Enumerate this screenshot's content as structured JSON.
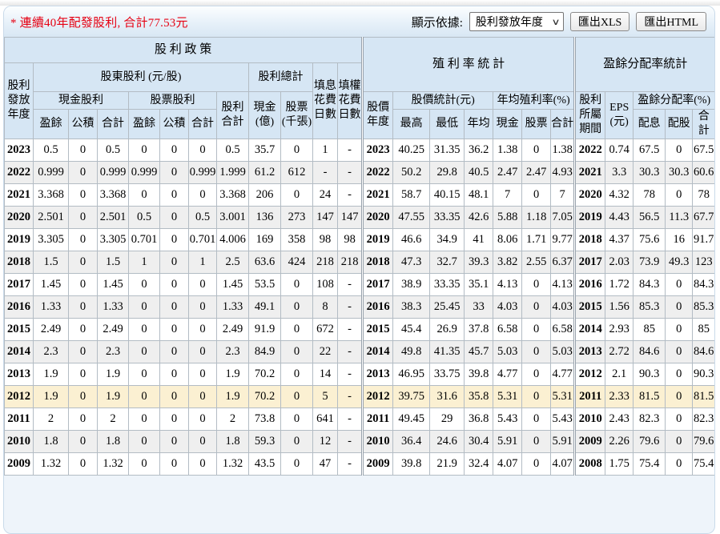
{
  "colors": {
    "note_red": "#e60012",
    "header_bg": "#d6e6f4",
    "row_alt": "#efefef",
    "row_highlight": "#fbf0d2"
  },
  "page": {
    "note": "* 連續40年配發股利, 合計77.53元",
    "toolbar": {
      "display_label": "顯示依據:",
      "display_value": "股利發放年度",
      "export_xls": "匯出XLS",
      "export_html": "匯出HTML"
    }
  },
  "table": {
    "sections": {
      "policy": "股  利  政  策",
      "yield": "殖 利 率 統 計",
      "payout": "盈餘分配率統計"
    },
    "headers": {
      "year": "股利\n發放\n年度",
      "shareholder": "股東股利 (元/股)",
      "cash_div": "現金股利",
      "stock_div": "股票股利",
      "earn": "盈餘",
      "surplus": "公積",
      "total": "合計",
      "div_sum": "股利\n合計",
      "grand_total": "股利總計",
      "cash_b": "現金\n(億)",
      "stock_k": "股票\n(千張)",
      "fill_interest": "填息\n花費\n日數",
      "fill_rights": "填權\n花費\n日數",
      "price_year": "股價\n年度",
      "price_stats": "股價統計(元)",
      "high": "最高",
      "low": "最低",
      "avg": "年均",
      "yield_pct": "年均殖利率(%)",
      "cash": "現金",
      "stock": "股票",
      "period": "股利\n所屬\n期間",
      "eps": "EPS\n(元)",
      "payout_pct": "盈餘分配率(%)",
      "p_cash": "配息",
      "p_stock": "配股"
    },
    "rows": [
      {
        "highlight": false,
        "cells": [
          "2023",
          "0.5",
          "0",
          "0.5",
          "0",
          "0",
          "0",
          "0.5",
          "35.7",
          "0",
          "1",
          "-",
          "2023",
          "40.25",
          "31.35",
          "36.2",
          "1.38",
          "0",
          "1.38",
          "2022",
          "0.74",
          "67.5",
          "0",
          "67.5"
        ]
      },
      {
        "highlight": false,
        "cells": [
          "2022",
          "0.999",
          "0",
          "0.999",
          "0.999",
          "0",
          "0.999",
          "1.999",
          "61.2",
          "612",
          "-",
          "-",
          "2022",
          "50.2",
          "29.8",
          "40.5",
          "2.47",
          "2.47",
          "4.93",
          "2021",
          "3.3",
          "30.3",
          "30.3",
          "60.6"
        ]
      },
      {
        "highlight": false,
        "cells": [
          "2021",
          "3.368",
          "0",
          "3.368",
          "0",
          "0",
          "0",
          "3.368",
          "206",
          "0",
          "24",
          "-",
          "2021",
          "58.7",
          "40.15",
          "48.1",
          "7",
          "0",
          "7",
          "2020",
          "4.32",
          "78",
          "0",
          "78"
        ]
      },
      {
        "highlight": false,
        "cells": [
          "2020",
          "2.501",
          "0",
          "2.501",
          "0.5",
          "0",
          "0.5",
          "3.001",
          "136",
          "273",
          "147",
          "147",
          "2020",
          "47.55",
          "33.35",
          "42.6",
          "5.88",
          "1.18",
          "7.05",
          "2019",
          "4.43",
          "56.5",
          "11.3",
          "67.7"
        ]
      },
      {
        "highlight": false,
        "cells": [
          "2019",
          "3.305",
          "0",
          "3.305",
          "0.701",
          "0",
          "0.701",
          "4.006",
          "169",
          "358",
          "98",
          "98",
          "2019",
          "46.6",
          "34.9",
          "41",
          "8.06",
          "1.71",
          "9.77",
          "2018",
          "4.37",
          "75.6",
          "16",
          "91.7"
        ]
      },
      {
        "highlight": false,
        "cells": [
          "2018",
          "1.5",
          "0",
          "1.5",
          "1",
          "0",
          "1",
          "2.5",
          "63.6",
          "424",
          "218",
          "218",
          "2018",
          "47.3",
          "32.7",
          "39.3",
          "3.82",
          "2.55",
          "6.37",
          "2017",
          "2.03",
          "73.9",
          "49.3",
          "123"
        ]
      },
      {
        "highlight": false,
        "cells": [
          "2017",
          "1.45",
          "0",
          "1.45",
          "0",
          "0",
          "0",
          "1.45",
          "53.5",
          "0",
          "108",
          "-",
          "2017",
          "38.9",
          "33.35",
          "35.1",
          "4.13",
          "0",
          "4.13",
          "2016",
          "1.72",
          "84.3",
          "0",
          "84.3"
        ]
      },
      {
        "highlight": false,
        "cells": [
          "2016",
          "1.33",
          "0",
          "1.33",
          "0",
          "0",
          "0",
          "1.33",
          "49.1",
          "0",
          "8",
          "-",
          "2016",
          "38.3",
          "25.45",
          "33",
          "4.03",
          "0",
          "4.03",
          "2015",
          "1.56",
          "85.3",
          "0",
          "85.3"
        ]
      },
      {
        "highlight": false,
        "cells": [
          "2015",
          "2.49",
          "0",
          "2.49",
          "0",
          "0",
          "0",
          "2.49",
          "91.9",
          "0",
          "672",
          "-",
          "2015",
          "45.4",
          "26.9",
          "37.8",
          "6.58",
          "0",
          "6.58",
          "2014",
          "2.93",
          "85",
          "0",
          "85"
        ]
      },
      {
        "highlight": false,
        "cells": [
          "2014",
          "2.3",
          "0",
          "2.3",
          "0",
          "0",
          "0",
          "2.3",
          "84.9",
          "0",
          "22",
          "-",
          "2014",
          "49.8",
          "41.35",
          "45.7",
          "5.03",
          "0",
          "5.03",
          "2013",
          "2.72",
          "84.6",
          "0",
          "84.6"
        ]
      },
      {
        "highlight": false,
        "cells": [
          "2013",
          "1.9",
          "0",
          "1.9",
          "0",
          "0",
          "0",
          "1.9",
          "70.2",
          "0",
          "14",
          "-",
          "2013",
          "46.95",
          "33.75",
          "39.8",
          "4.77",
          "0",
          "4.77",
          "2012",
          "2.1",
          "90.3",
          "0",
          "90.3"
        ]
      },
      {
        "highlight": true,
        "cells": [
          "2012",
          "1.9",
          "0",
          "1.9",
          "0",
          "0",
          "0",
          "1.9",
          "70.2",
          "0",
          "5",
          "-",
          "2012",
          "39.75",
          "31.6",
          "35.8",
          "5.31",
          "0",
          "5.31",
          "2011",
          "2.33",
          "81.5",
          "0",
          "81.5"
        ]
      },
      {
        "highlight": false,
        "cells": [
          "2011",
          "2",
          "0",
          "2",
          "0",
          "0",
          "0",
          "2",
          "73.8",
          "0",
          "641",
          "-",
          "2011",
          "49.45",
          "29",
          "36.8",
          "5.43",
          "0",
          "5.43",
          "2010",
          "2.43",
          "82.3",
          "0",
          "82.3"
        ]
      },
      {
        "highlight": false,
        "cells": [
          "2010",
          "1.8",
          "0",
          "1.8",
          "0",
          "0",
          "0",
          "1.8",
          "59.3",
          "0",
          "12",
          "-",
          "2010",
          "36.4",
          "24.6",
          "30.4",
          "5.91",
          "0",
          "5.91",
          "2009",
          "2.26",
          "79.6",
          "0",
          "79.6"
        ]
      },
      {
        "highlight": false,
        "cells": [
          "2009",
          "1.32",
          "0",
          "1.32",
          "0",
          "0",
          "0",
          "1.32",
          "43.5",
          "0",
          "47",
          "-",
          "2009",
          "39.8",
          "21.9",
          "32.4",
          "4.07",
          "0",
          "4.07",
          "2008",
          "1.75",
          "75.4",
          "0",
          "75.4"
        ]
      }
    ]
  }
}
